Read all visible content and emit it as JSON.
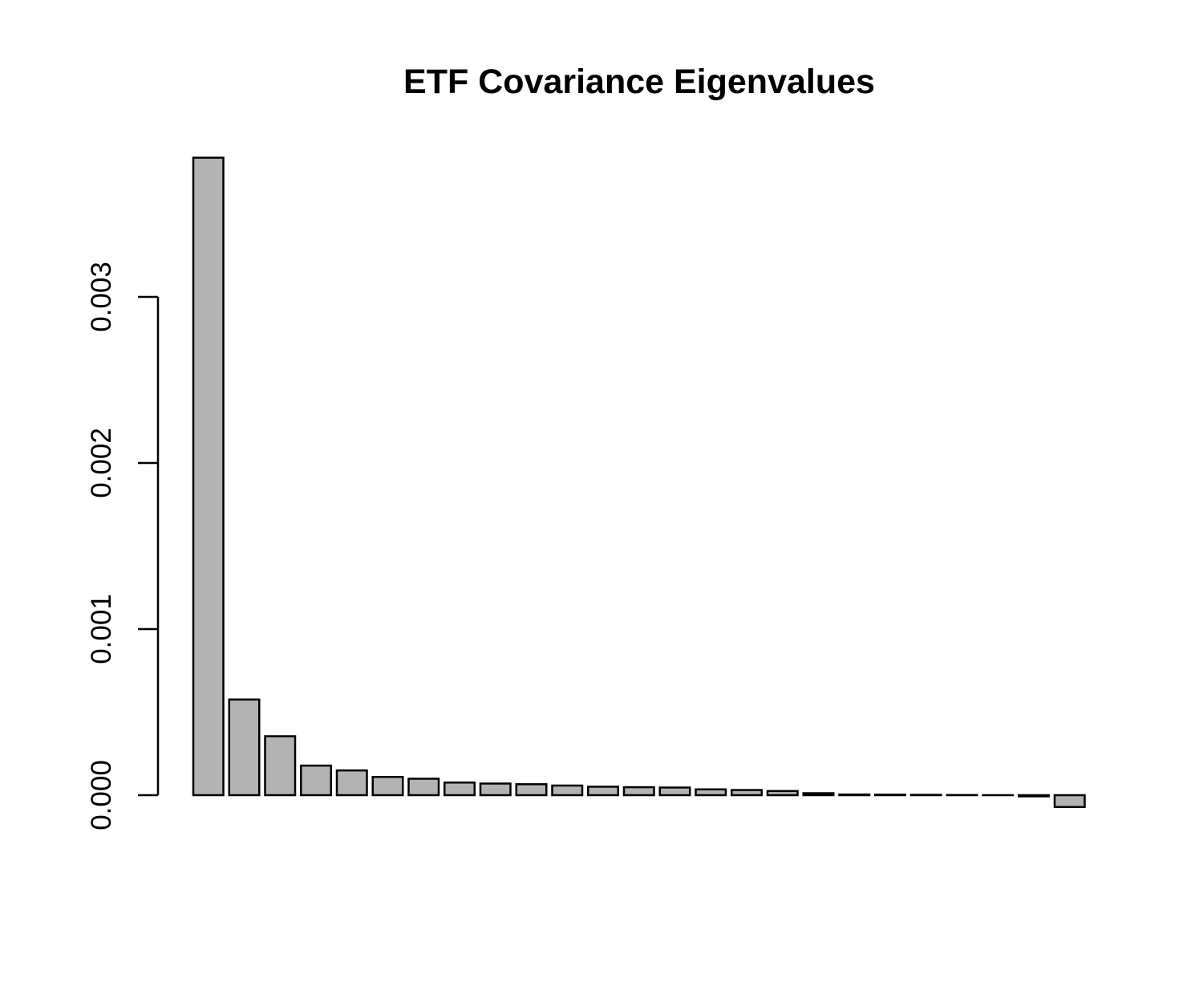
{
  "chart_data": {
    "type": "bar",
    "title": "ETF Covariance Eigenvalues",
    "xlabel": "",
    "ylabel": "",
    "ylim": [
      -7e-05,
      0.00385
    ],
    "yticks": [
      {
        "value": 0.0,
        "label": "0.000"
      },
      {
        "value": 0.001,
        "label": "0.001"
      },
      {
        "value": 0.002,
        "label": "0.002"
      },
      {
        "value": 0.003,
        "label": "0.003"
      }
    ],
    "bar_color": "#b3b3b3",
    "values": [
      0.003838,
      0.000576,
      0.000355,
      0.000178,
      0.000149,
      0.00011,
      9.9e-05,
      7.6e-05,
      7e-05,
      6.6e-05,
      5.8e-05,
      5.1e-05,
      4.8e-05,
      4.6e-05,
      3.5e-05,
      3.1e-05,
      2.5e-05,
      1.2e-05,
      4e-06,
      3e-06,
      2e-06,
      1e-06,
      0.0,
      -7e-06,
      -7.1e-05
    ]
  }
}
